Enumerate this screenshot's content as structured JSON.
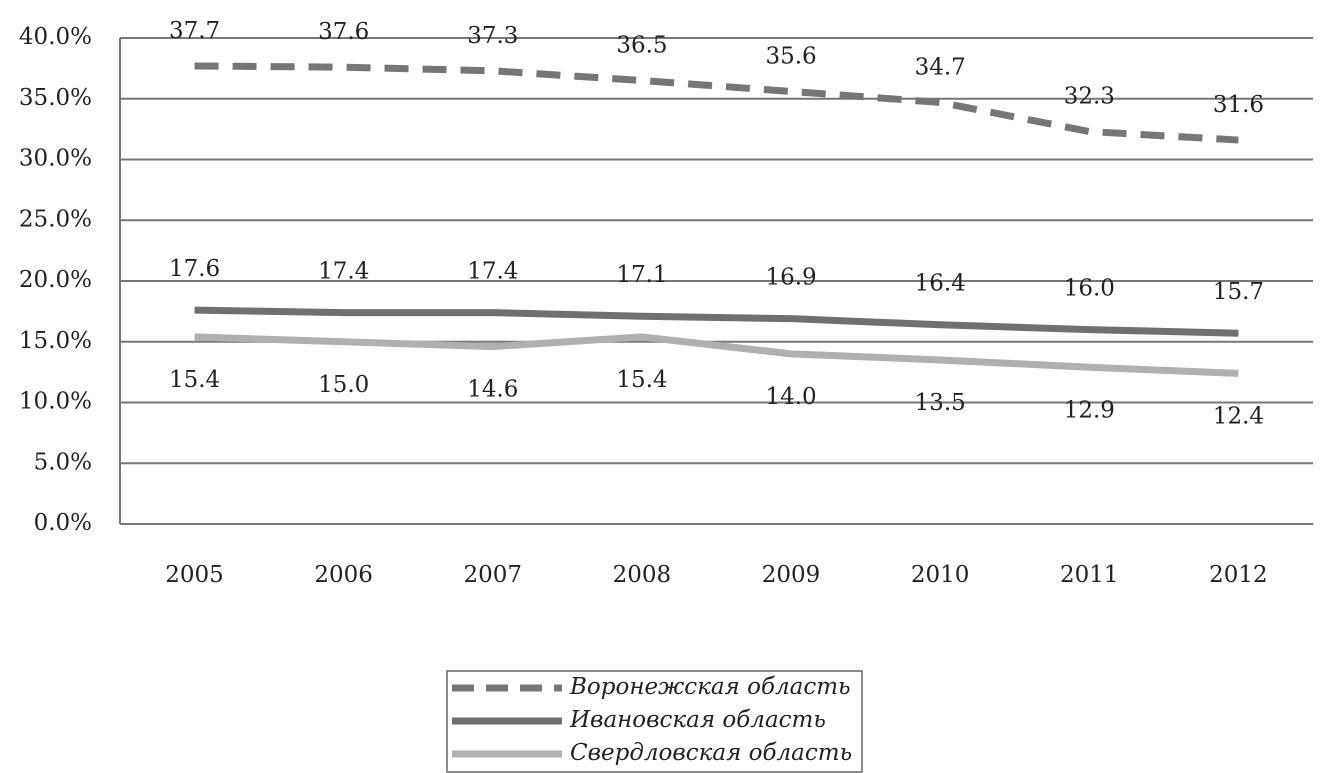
{
  "chart_data": {
    "type": "line",
    "categories": [
      "2005",
      "2006",
      "2007",
      "2008",
      "2009",
      "2010",
      "2011",
      "2012"
    ],
    "series": [
      {
        "name": "Воронежская область",
        "color": "#767676",
        "dashed": true,
        "values": [
          37.7,
          37.6,
          37.3,
          36.5,
          35.6,
          34.7,
          32.3,
          31.6
        ],
        "value_labels": [
          "37.7",
          "37.6",
          "37.3",
          "36.5",
          "35.6",
          "34.7",
          "32.3",
          "31.6"
        ]
      },
      {
        "name": "Ивановская область",
        "color": "#707070",
        "dashed": false,
        "values": [
          17.6,
          17.4,
          17.4,
          17.1,
          16.9,
          16.4,
          16.0,
          15.7
        ],
        "value_labels": [
          "17.6",
          "17.4",
          "17.4",
          "17.1",
          "16.9",
          "16.4",
          "16.0",
          "15.7"
        ]
      },
      {
        "name": "Свердловская область",
        "color": "#b0b0b0",
        "dashed": false,
        "values": [
          15.4,
          15.0,
          14.6,
          15.4,
          14.0,
          13.5,
          12.9,
          12.4
        ],
        "value_labels": [
          "15.4",
          "15.0",
          "14.6",
          "15.4",
          "14.0",
          "13.5",
          "12.9",
          "12.4"
        ]
      }
    ],
    "ylim": [
      0,
      40
    ],
    "yticks": [
      {
        "value": 0,
        "label": "0.0%"
      },
      {
        "value": 5,
        "label": "5.0%"
      },
      {
        "value": 10,
        "label": "10.0%"
      },
      {
        "value": 15,
        "label": "15.0%"
      },
      {
        "value": 20,
        "label": "20.0%"
      },
      {
        "value": 25,
        "label": "25.0%"
      },
      {
        "value": 30,
        "label": "30.0%"
      },
      {
        "value": 35,
        "label": "35.0%"
      },
      {
        "value": 40,
        "label": "40.0%"
      }
    ],
    "grid": true,
    "legend": "bottom"
  }
}
